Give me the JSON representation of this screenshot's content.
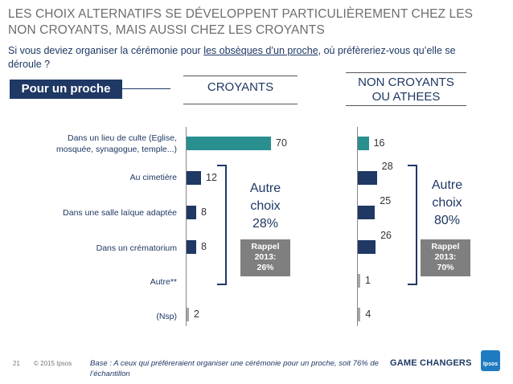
{
  "header": {
    "title": "LES CHOIX ALTERNATIFS SE DÉVELOPPENT PARTICULIÈREMENT CHEZ LES NON CROYANTS, MAIS AUSSI CHEZ LES CROYANTS",
    "question_before": "Si vous deviez organiser la cérémonie pour ",
    "question_underlined": "les obsèques d’un proche",
    "question_after": ", où préfèreriez-vous qu’elle se déroule ?"
  },
  "badge": "Pour un proche",
  "colors": {
    "teal": "#2a8f8f",
    "navy": "#1f3864",
    "grey": "#a6a6a6",
    "rappel_bg": "#7f7f7f"
  },
  "chart_data": {
    "type": "bar",
    "orientation": "horizontal",
    "categories": [
      "Dans un lieu de culte (Eglise, mosquée, synagogue, temple...)",
      "Au cimetière",
      "Dans une salle laïque adaptée",
      "Dans un crématorium",
      "Autre**",
      "(Nsp)"
    ],
    "series": [
      {
        "name": "CROYANTS",
        "values": [
          70,
          12,
          8,
          8,
          null,
          2
        ]
      },
      {
        "name": "NON CROYANTS OU ATHEES",
        "values": [
          16,
          28,
          25,
          26,
          1,
          4
        ]
      }
    ],
    "annotations": {
      "croyants": {
        "autre_choix": "Autre choix 28%",
        "rappel": "Rappel 2013: 26%"
      },
      "non_croyants": {
        "autre_choix": "Autre choix 80%",
        "rappel": "Rappel 2013: 70%"
      }
    }
  },
  "labels": {
    "col1": "CROYANTS",
    "col2_line1": "NON CROYANTS",
    "col2_line2": "OU ATHEES",
    "cat1_line1": "Dans un lieu de culte (Eglise,",
    "cat1_line2": "mosquée, synagogue, temple...)",
    "autre_c": "Autre",
    "choix_c": "choix",
    "pct_c": "28%",
    "rappel_c1": "Rappel",
    "rappel_c2": "2013:",
    "rappel_c3": "26%",
    "autre_n": "Autre",
    "choix_n": "choix",
    "pct_n": "80%",
    "rappel_n1": "Rappel",
    "rappel_n2": "2013:",
    "rappel_n3": "70%"
  },
  "footer": {
    "page": "21",
    "copyright": "© 2015 Ipsos",
    "base": "Base : A ceux qui préféreraient organiser une cérémonie pour un proche, soit 76% de l’échantillon",
    "brand": "GAME CHANGERS",
    "logo": "Ipsos"
  }
}
